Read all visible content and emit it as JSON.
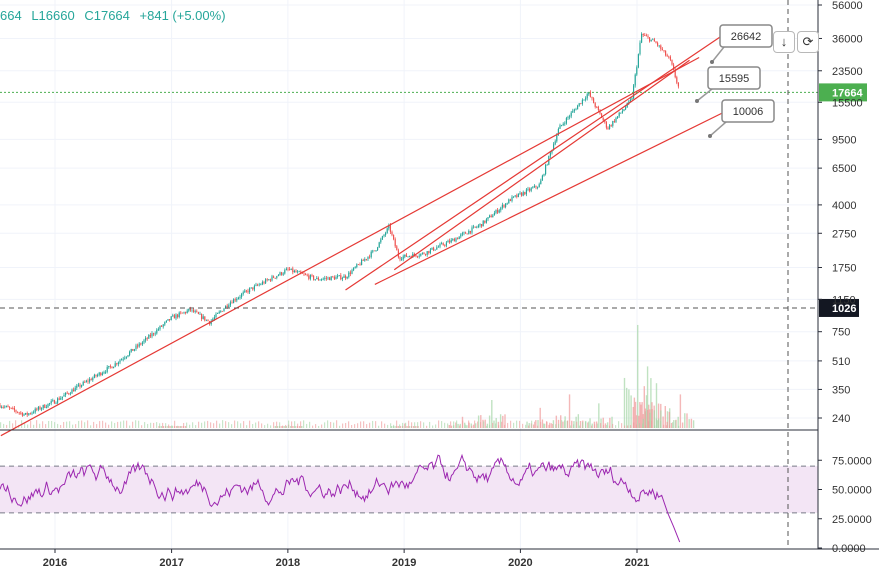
{
  "ohlc": {
    "open": "664",
    "low": "L16660",
    "close": "C17664",
    "change": "+841 (+5.00%)"
  },
  "colors": {
    "up": "#26a69a",
    "down": "#ef5350",
    "trendline": "#e53935",
    "rsi_line": "#9c27b0",
    "rsi_band": "#f3e5f5",
    "price_line": "#4caf50"
  },
  "callouts": [
    "26642",
    "15595",
    "10006"
  ],
  "price_badges": {
    "last": "17664",
    "level": "1026"
  },
  "chart_data": {
    "type": "candlestick",
    "x_axis": {
      "tick_labels": [
        "2016",
        "2017",
        "2018",
        "2019",
        "2020",
        "2021"
      ]
    },
    "price_axis": {
      "scale": "log",
      "tick_labels": [
        "56000",
        "36000",
        "23500",
        "15500",
        "9500",
        "6500",
        "4000",
        "2750",
        "1750",
        "1150",
        "750",
        "510",
        "350",
        "240"
      ],
      "ylim": [
        190,
        60000
      ]
    },
    "price_path": [
      [
        "2015-07-01",
        290
      ],
      [
        "2015-10-01",
        250
      ],
      [
        "2016-01-01",
        300
      ],
      [
        "2016-04-01",
        380
      ],
      [
        "2016-07-01",
        480
      ],
      [
        "2016-10-01",
        650
      ],
      [
        "2017-01-01",
        900
      ],
      [
        "2017-03-01",
        1000
      ],
      [
        "2017-05-01",
        850
      ],
      [
        "2017-07-01",
        1100
      ],
      [
        "2017-09-01",
        1300
      ],
      [
        "2018-01-01",
        1700
      ],
      [
        "2018-04-01",
        1500
      ],
      [
        "2018-07-01",
        1550
      ],
      [
        "2018-10-01",
        2200
      ],
      [
        "2018-11-15",
        3000
      ],
      [
        "2018-12-15",
        2000
      ],
      [
        "2019-03-01",
        2100
      ],
      [
        "2019-06-01",
        2500
      ],
      [
        "2019-09-01",
        3100
      ],
      [
        "2019-12-01",
        4300
      ],
      [
        "2020-03-01",
        5200
      ],
      [
        "2020-05-01",
        11000
      ],
      [
        "2020-08-01",
        17500
      ],
      [
        "2020-10-01",
        11000
      ],
      [
        "2020-12-15",
        16000
      ],
      [
        "2021-01-15",
        38000
      ],
      [
        "2021-03-01",
        34000
      ],
      [
        "2021-04-15",
        27000
      ],
      [
        "2021-05-15",
        18000
      ]
    ],
    "levels": [
      {
        "value": 17664,
        "style": "dotted"
      },
      {
        "value": 1026,
        "style": "dashed"
      }
    ],
    "trendlines": [
      {
        "from": [
          "2015-07-15",
          190
        ],
        "to": [
          "2021-07-15",
          28000
        ]
      },
      {
        "from": [
          "2018-07-01",
          1300
        ],
        "to": [
          "2021-10-01",
          38000
        ]
      },
      {
        "from": [
          "2018-10-01",
          1400
        ],
        "to": [
          "2021-10-15",
          14000
        ]
      },
      {
        "from": [
          "2018-12-01",
          1700
        ],
        "to": [
          "2021-06-15",
          27000
        ]
      }
    ],
    "volume_bars": [
      [
        "2017-01-01",
        0.02
      ],
      [
        "2018-01-01",
        0.03
      ],
      [
        "2019-01-01",
        0.04
      ],
      [
        "2019-07-01",
        0.1
      ],
      [
        "2019-10-01",
        0.25
      ],
      [
        "2020-03-01",
        0.18
      ],
      [
        "2020-06-01",
        0.3
      ],
      [
        "2020-09-01",
        0.22
      ],
      [
        "2021-01-01",
        0.92
      ],
      [
        "2021-02-01",
        0.55
      ],
      [
        "2021-03-01",
        0.4
      ],
      [
        "2021-05-15",
        0.3
      ]
    ],
    "rsi": {
      "tick_labels": [
        "75.0000",
        "50.0000",
        "25.0000",
        "0.0000"
      ],
      "ylim": [
        0,
        100
      ],
      "band": [
        30,
        70
      ],
      "end_value": 5
    },
    "gridlines": true
  }
}
